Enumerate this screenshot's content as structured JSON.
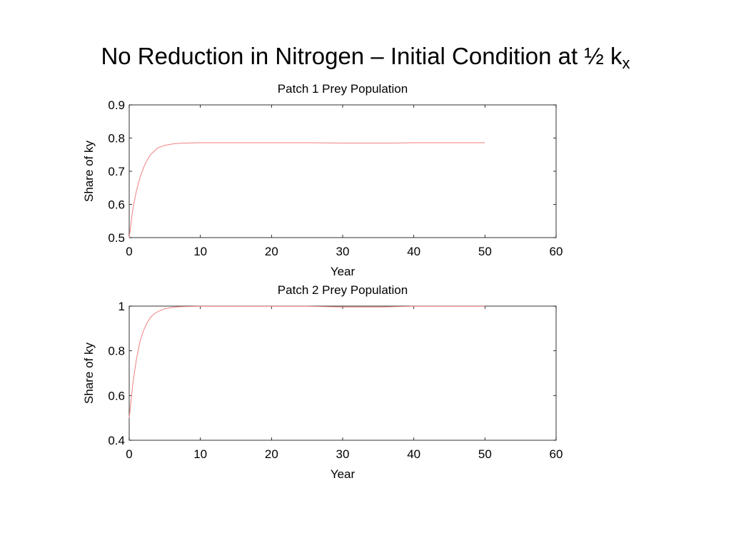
{
  "slide": {
    "title_main": "No Reduction in Nitrogen – Initial Condition at ½ k",
    "title_subscript": "x"
  },
  "chart_data": [
    {
      "type": "line",
      "title": "Patch 1 Prey Population",
      "xlabel": "Year",
      "ylabel": "Share of ky",
      "xlim": [
        0,
        60
      ],
      "ylim": [
        0.5,
        0.9
      ],
      "xticks": [
        0,
        10,
        20,
        30,
        40,
        50,
        60
      ],
      "yticks": [
        0.5,
        0.6,
        0.7,
        0.8,
        0.9
      ],
      "ytick_labels": [
        "0.5",
        "0.6",
        "0.7",
        "0.8",
        "0.9"
      ],
      "grid": false,
      "line_color": "#f08080",
      "series": [
        {
          "x": [
            0,
            0.5,
            1,
            1.5,
            2,
            2.5,
            3,
            4,
            5,
            6,
            7,
            8,
            10,
            15,
            20,
            25,
            30,
            37,
            40,
            45,
            50
          ],
          "values": [
            0.5,
            0.585,
            0.64,
            0.68,
            0.71,
            0.733,
            0.75,
            0.77,
            0.778,
            0.782,
            0.784,
            0.785,
            0.786,
            0.786,
            0.786,
            0.786,
            0.785,
            0.785,
            0.786,
            0.786,
            0.786
          ]
        }
      ]
    },
    {
      "type": "line",
      "title": "Patch 2 Prey Population",
      "xlabel": "Year",
      "ylabel": "Share of ky",
      "xlim": [
        0,
        60
      ],
      "ylim": [
        0.4,
        1.0
      ],
      "xticks": [
        0,
        10,
        20,
        30,
        40,
        50,
        60
      ],
      "yticks": [
        0.4,
        0.6,
        0.8,
        1.0
      ],
      "ytick_labels": [
        "0.4",
        "0.6",
        "0.8",
        "1"
      ],
      "grid": false,
      "line_color": "#f08080",
      "series": [
        {
          "x": [
            0,
            0.5,
            1,
            1.5,
            2,
            2.5,
            3,
            3.5,
            4,
            5,
            6,
            7,
            8,
            10,
            15,
            20,
            25,
            30,
            35,
            40,
            45,
            50
          ],
          "values": [
            0.5,
            0.65,
            0.76,
            0.84,
            0.89,
            0.925,
            0.95,
            0.965,
            0.975,
            0.988,
            0.994,
            0.997,
            0.998,
            0.999,
            0.999,
            0.999,
            0.999,
            0.996,
            0.996,
            0.999,
            0.999,
            0.999
          ]
        }
      ]
    }
  ]
}
